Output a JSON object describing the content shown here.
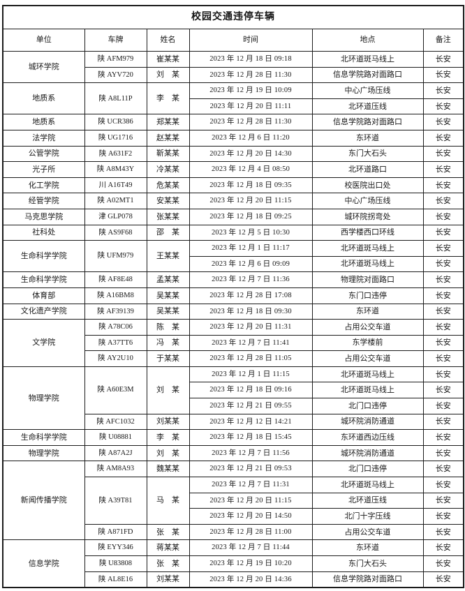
{
  "title": "校园交通违停车辆",
  "colors": {
    "border": "#1b1b1b",
    "background": "#ffffff",
    "text": "#161616"
  },
  "columns": [
    "单位",
    "车牌",
    "姓名",
    "时间",
    "地点",
    "备注"
  ],
  "column_keys": [
    "unit",
    "plate",
    "name",
    "time",
    "location",
    "remark"
  ],
  "rows": [
    {
      "cells": [
        {
          "text": "城环学院",
          "rowspan": 2
        },
        {
          "text": "陕 AFM979"
        },
        {
          "text": "崔某某"
        },
        {
          "text": "2023 年 12 月 18 日 09:18"
        },
        {
          "text": "北环道斑马线上"
        },
        {
          "text": "长安"
        }
      ]
    },
    {
      "cells": [
        null,
        {
          "text": "陕 AYV720"
        },
        {
          "text": "刘　某"
        },
        {
          "text": "2023 年 12 月 28 日 11:30"
        },
        {
          "text": "信息学院路对面路口"
        },
        {
          "text": "长安"
        }
      ]
    },
    {
      "cells": [
        {
          "text": "地质系",
          "rowspan": 2
        },
        {
          "text": "陕 A8L11P",
          "rowspan": 2
        },
        {
          "text": "李　某",
          "rowspan": 2
        },
        {
          "text": "2023 年 12 月 19 日 10:09"
        },
        {
          "text": "中心广场压线"
        },
        {
          "text": "长安"
        }
      ]
    },
    {
      "cells": [
        null,
        null,
        null,
        {
          "text": "2023 年 12 月 20 日 11:11"
        },
        {
          "text": "北环道压线"
        },
        {
          "text": "长安"
        }
      ]
    },
    {
      "cells": [
        {
          "text": "地质系"
        },
        {
          "text": "陕 UCR386"
        },
        {
          "text": "郑某某"
        },
        {
          "text": "2023 年 12 月 28 日 11:30"
        },
        {
          "text": "信息学院路对面路口"
        },
        {
          "text": "长安"
        }
      ]
    },
    {
      "cells": [
        {
          "text": "法学院"
        },
        {
          "text": "陕 UG1716"
        },
        {
          "text": "赵某某"
        },
        {
          "text": "2023 年 12 月 6 日 11:20"
        },
        {
          "text": "东环道"
        },
        {
          "text": "长安"
        }
      ]
    },
    {
      "cells": [
        {
          "text": "公管学院"
        },
        {
          "text": "陕 A631F2"
        },
        {
          "text": "靳某某"
        },
        {
          "text": "2023 年 12 月 20 日 14:30"
        },
        {
          "text": "东门大石头"
        },
        {
          "text": "长安"
        }
      ]
    },
    {
      "cells": [
        {
          "text": "光子所"
        },
        {
          "text": "陕 A8M43Y"
        },
        {
          "text": "冷某某"
        },
        {
          "text": "2023 年 12 月 4 日 08:50"
        },
        {
          "text": "北环道路口"
        },
        {
          "text": "长安"
        }
      ]
    },
    {
      "cells": [
        {
          "text": "化工学院"
        },
        {
          "text": "川 A16T49"
        },
        {
          "text": "危某某"
        },
        {
          "text": "2023 年 12 月 18 日 09:35"
        },
        {
          "text": "校医院出口处"
        },
        {
          "text": "长安"
        }
      ]
    },
    {
      "cells": [
        {
          "text": "经管学院"
        },
        {
          "text": "陕 A02MT1"
        },
        {
          "text": "安某某"
        },
        {
          "text": "2023 年 12 月 20 日 11:15"
        },
        {
          "text": "中心广场压线"
        },
        {
          "text": "长安"
        }
      ]
    },
    {
      "cells": [
        {
          "text": "马克思学院"
        },
        {
          "text": "津 GLP078"
        },
        {
          "text": "张某某"
        },
        {
          "text": "2023 年 12 月 18 日 09:25"
        },
        {
          "text": "城环院拐弯处"
        },
        {
          "text": "长安"
        }
      ]
    },
    {
      "cells": [
        {
          "text": "社科处"
        },
        {
          "text": "陕 AS9F68"
        },
        {
          "text": "邵　某"
        },
        {
          "text": "2023 年 12 月 5 日 10:30"
        },
        {
          "text": "西学楼西口环线"
        },
        {
          "text": "长安"
        }
      ]
    },
    {
      "cells": [
        {
          "text": "生命科学学院",
          "rowspan": 2
        },
        {
          "text": "陕 UFM979",
          "rowspan": 2
        },
        {
          "text": "王某某",
          "rowspan": 2
        },
        {
          "text": "2023 年 12 月 1 日 11:17"
        },
        {
          "text": "北环道斑马线上"
        },
        {
          "text": "长安"
        }
      ]
    },
    {
      "cells": [
        null,
        null,
        null,
        {
          "text": "2023 年 12 月 6 日 09:09"
        },
        {
          "text": "北环道斑马线上"
        },
        {
          "text": "长安"
        }
      ]
    },
    {
      "cells": [
        {
          "text": "生命科学学院"
        },
        {
          "text": "陕 AF8E48"
        },
        {
          "text": "孟某某"
        },
        {
          "text": "2023 年 12 月 7 日 11:36"
        },
        {
          "text": "物理院对面路口"
        },
        {
          "text": "长安"
        }
      ]
    },
    {
      "cells": [
        {
          "text": "体育部"
        },
        {
          "text": "陕 A16BM8"
        },
        {
          "text": "吴某某"
        },
        {
          "text": "2023 年 12 月 28 日 17:08"
        },
        {
          "text": "东门口违停"
        },
        {
          "text": "长安"
        }
      ]
    },
    {
      "cells": [
        {
          "text": "文化遗产学院"
        },
        {
          "text": "陕 AF39139"
        },
        {
          "text": "吴某某"
        },
        {
          "text": "2023 年 12 月 18 日 09:30"
        },
        {
          "text": "东环道"
        },
        {
          "text": "长安"
        }
      ]
    },
    {
      "cells": [
        {
          "text": "文学院",
          "rowspan": 3
        },
        {
          "text": "陕 A78C06"
        },
        {
          "text": "陈　某"
        },
        {
          "text": "2023 年 12 月 20 日 11:31"
        },
        {
          "text": "占用公交车道"
        },
        {
          "text": "长安"
        }
      ]
    },
    {
      "cells": [
        null,
        {
          "text": "陕 A37TT6"
        },
        {
          "text": "冯　某"
        },
        {
          "text": "2023 年 12 月 7 日 11:41"
        },
        {
          "text": "东学楼前"
        },
        {
          "text": "长安"
        }
      ]
    },
    {
      "cells": [
        null,
        {
          "text": "陕 AY2U10"
        },
        {
          "text": "于某某"
        },
        {
          "text": "2023 年 12 月 28 日 11:05"
        },
        {
          "text": "占用公交车道"
        },
        {
          "text": "长安"
        }
      ]
    },
    {
      "cells": [
        {
          "text": "物理学院",
          "rowspan": 4
        },
        {
          "text": "陕 A60E3M",
          "rowspan": 3
        },
        {
          "text": "刘　某",
          "rowspan": 3
        },
        {
          "text": "2023 年 12 月 1 日 11:15"
        },
        {
          "text": "北环道斑马线上"
        },
        {
          "text": "长安"
        }
      ]
    },
    {
      "cells": [
        null,
        null,
        null,
        {
          "text": "2023 年 12 月 18 日 09:16"
        },
        {
          "text": "北环道斑马线上"
        },
        {
          "text": "长安"
        }
      ]
    },
    {
      "cells": [
        null,
        null,
        null,
        {
          "text": "2023 年 12 月 21 日 09:55"
        },
        {
          "text": "北门口违停"
        },
        {
          "text": "长安"
        }
      ]
    },
    {
      "cells": [
        null,
        {
          "text": "陕 AFC1032"
        },
        {
          "text": "刘某某"
        },
        {
          "text": "2023 年 12 月 12 日 14:21"
        },
        {
          "text": "城环院消防通道"
        },
        {
          "text": "长安"
        }
      ]
    },
    {
      "cells": [
        {
          "text": "生命科学学院"
        },
        {
          "text": "陕 U08881"
        },
        {
          "text": "李　某"
        },
        {
          "text": "2023 年 12 月 18 日 15:45"
        },
        {
          "text": "东环道西边压线"
        },
        {
          "text": "长安"
        }
      ]
    },
    {
      "cells": [
        {
          "text": "物理学院"
        },
        {
          "text": "陕 A87A2J"
        },
        {
          "text": "刘　某"
        },
        {
          "text": "2023 年 12 月 7 日 11:56"
        },
        {
          "text": "城环院消防通道"
        },
        {
          "text": "长安"
        }
      ]
    },
    {
      "cells": [
        {
          "text": "新闻传播学院",
          "rowspan": 5
        },
        {
          "text": "陕 AM8A93"
        },
        {
          "text": "魏某某"
        },
        {
          "text": "2023 年 12 月 21 日 09:53"
        },
        {
          "text": "北门口违停"
        },
        {
          "text": "长安"
        }
      ]
    },
    {
      "cells": [
        null,
        {
          "text": "陕 A39T81",
          "rowspan": 3
        },
        {
          "text": "马　某",
          "rowspan": 3
        },
        {
          "text": "2023 年 12 月 7 日 11:31"
        },
        {
          "text": "北环道斑马线上"
        },
        {
          "text": "长安"
        }
      ]
    },
    {
      "cells": [
        null,
        null,
        null,
        {
          "text": "2023 年 12 月 20 日 11:15"
        },
        {
          "text": "北环道压线"
        },
        {
          "text": "长安"
        }
      ]
    },
    {
      "cells": [
        null,
        null,
        null,
        {
          "text": "2023 年 12 月 20 日 14:50"
        },
        {
          "text": "北门十字压线"
        },
        {
          "text": "长安"
        }
      ]
    },
    {
      "cells": [
        null,
        {
          "text": "陕 A871FD"
        },
        {
          "text": "张　某"
        },
        {
          "text": "2023 年 12 月 28 日 11:00"
        },
        {
          "text": "占用公交车道"
        },
        {
          "text": "长安"
        }
      ]
    },
    {
      "cells": [
        {
          "text": "信息学院",
          "rowspan": 3
        },
        {
          "text": "陕 EYY346"
        },
        {
          "text": "蒋某某"
        },
        {
          "text": "2023 年 12 月 7 日 11:44"
        },
        {
          "text": "东环道"
        },
        {
          "text": "长安"
        }
      ]
    },
    {
      "cells": [
        null,
        {
          "text": "陕 U83808"
        },
        {
          "text": "张　某"
        },
        {
          "text": "2023 年 12 月 19 日 10:20"
        },
        {
          "text": "东门大石头"
        },
        {
          "text": "长安"
        }
      ]
    },
    {
      "cells": [
        null,
        {
          "text": "陕 AL8E16"
        },
        {
          "text": "刘某某"
        },
        {
          "text": "2023 年 12 月 20 日 14:36"
        },
        {
          "text": "信息学院路对面路口"
        },
        {
          "text": "长安"
        }
      ]
    }
  ]
}
